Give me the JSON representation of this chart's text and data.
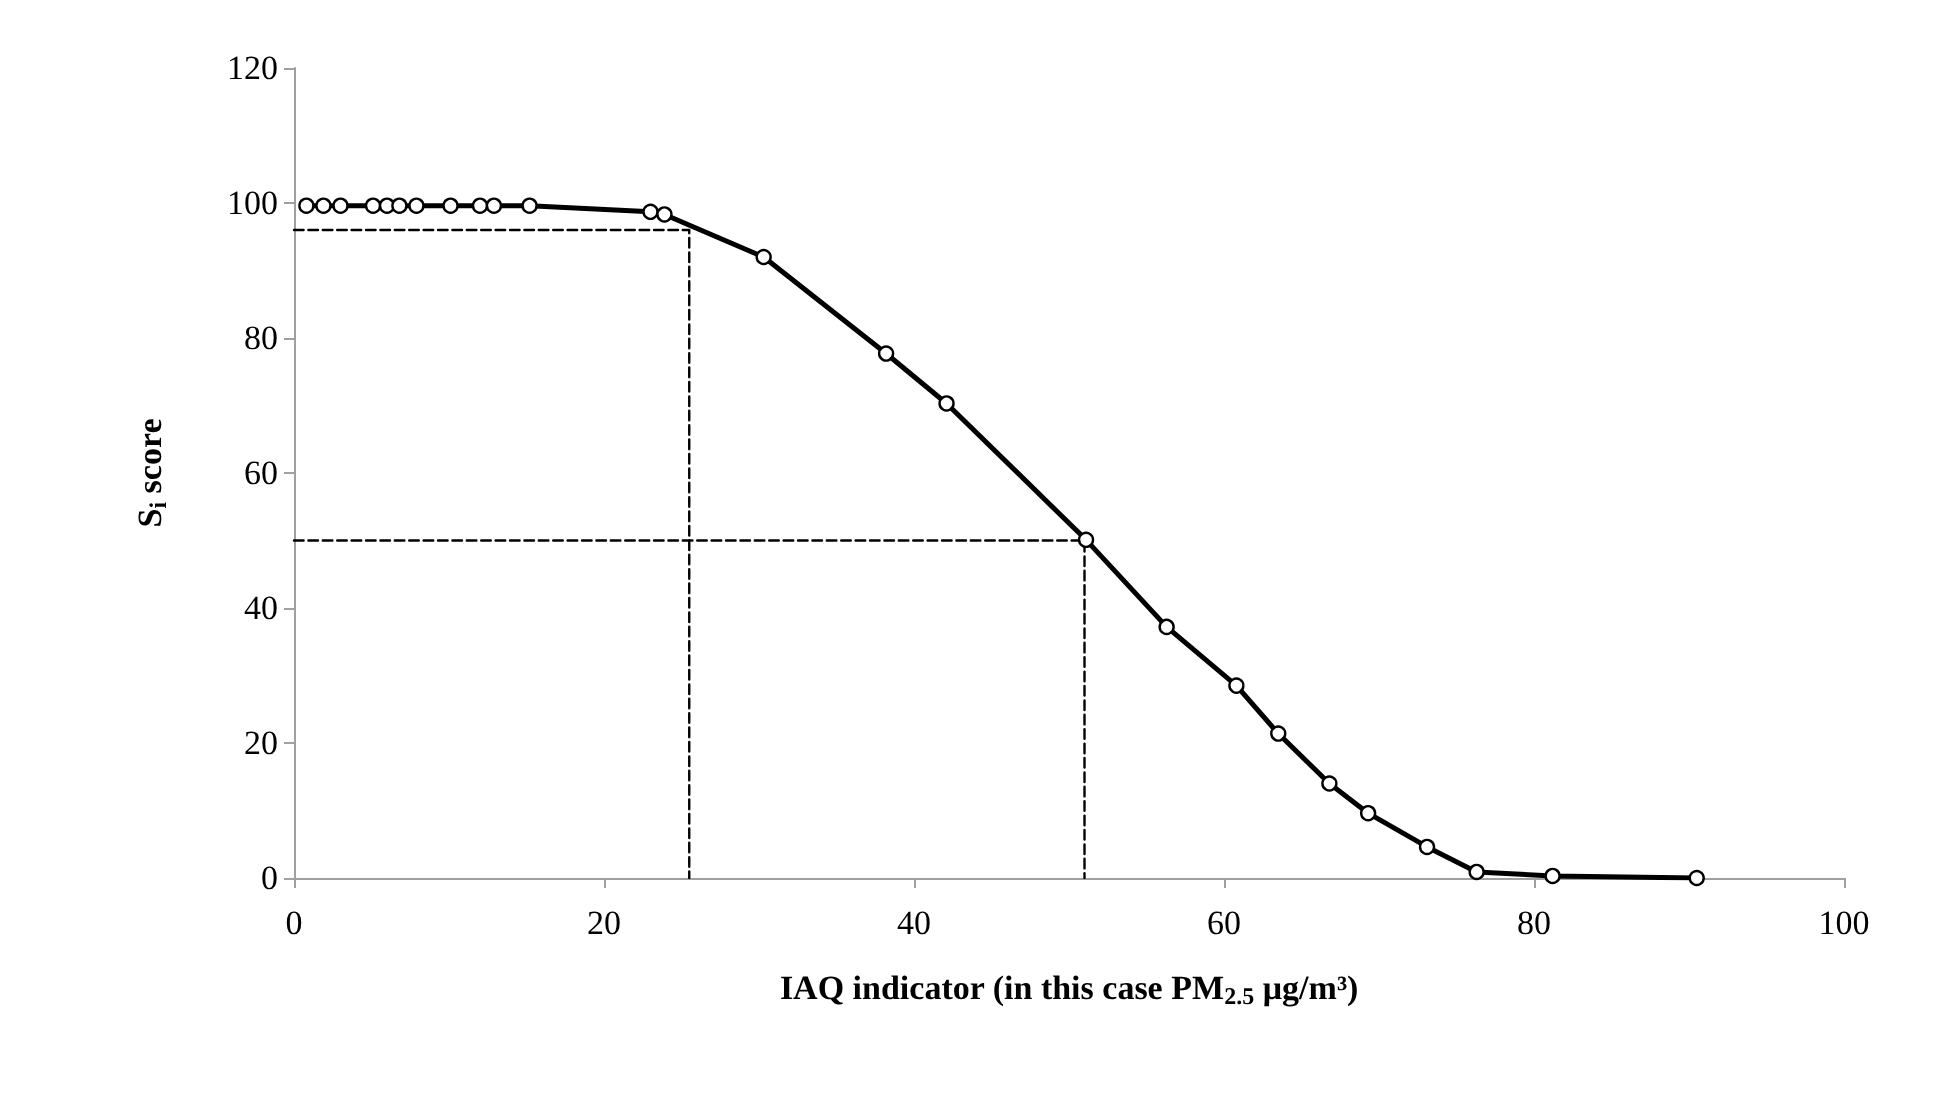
{
  "chart_data": {
    "type": "line",
    "xlabel": "IAQ indicator (in this case PM$_{2.5}$ μg/m³)",
    "ylabel": "S$_{i}$ score",
    "xlim": [
      0,
      100
    ],
    "xticks": [
      0,
      20,
      40,
      60,
      80,
      100
    ],
    "ylim": [
      0,
      120
    ],
    "yticks": [
      0,
      20,
      40,
      60,
      80,
      100,
      120
    ],
    "grid": false,
    "series": [
      {
        "color": "#000000",
        "marker": "circle",
        "line_style": "solid",
        "x": [
          0.8,
          1.9,
          3.0,
          5.1,
          6.0,
          6.8,
          7.9,
          10.1,
          12.0,
          12.9,
          15.2,
          23.0,
          23.9,
          30.3,
          38.2,
          42.1,
          51.1,
          56.3,
          60.8,
          63.5,
          66.8,
          69.3,
          73.1,
          76.3,
          81.2,
          90.5
        ],
        "values": [
          99.6,
          99.6,
          99.6,
          99.6,
          99.6,
          99.6,
          99.6,
          99.6,
          99.6,
          99.6,
          99.6,
          98.7,
          98.3,
          92.0,
          77.7,
          70.3,
          50.1,
          37.2,
          28.5,
          21.4,
          14.0,
          9.6,
          4.6,
          0.9,
          0.3,
          0
        ]
      },
      {
        "color": "#000000",
        "marker": "none",
        "line_style": "dashed",
        "x": [
          0,
          25.5,
          25.5
        ],
        "values": [
          96,
          96,
          0
        ]
      },
      {
        "color": "#000000",
        "marker": "none",
        "line_style": "dashed",
        "x": [
          0,
          51,
          51
        ],
        "values": [
          50,
          50,
          0
        ]
      }
    ]
  }
}
